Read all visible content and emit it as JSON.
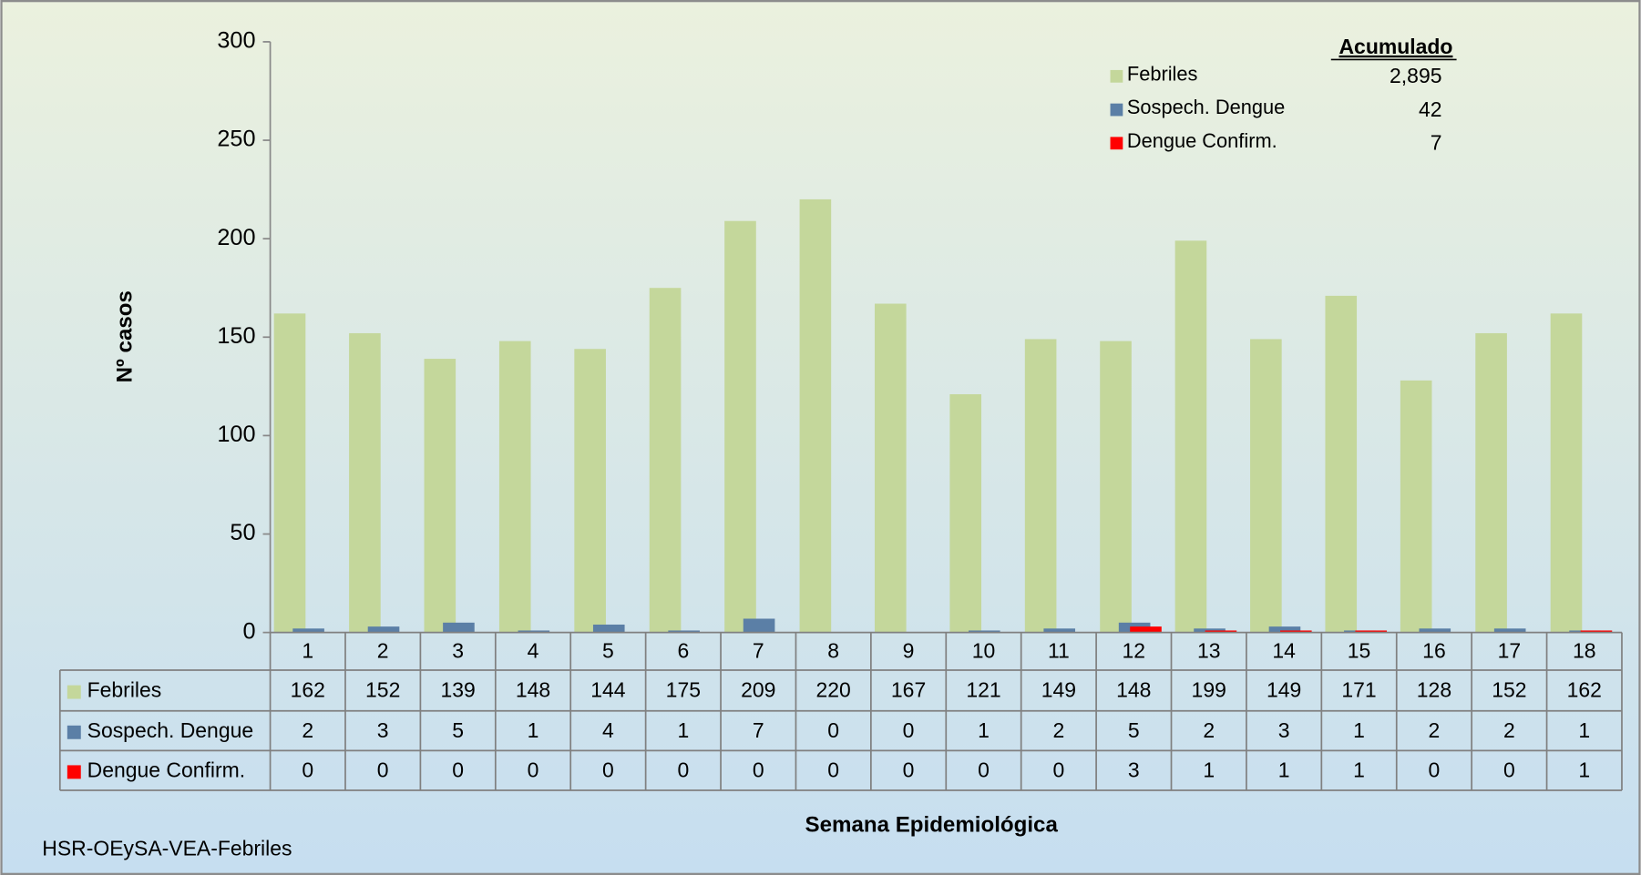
{
  "chart_data": {
    "type": "bar",
    "ylabel": "Nº casos",
    "xlabel": "Semana Epidemiológica",
    "footer": "HSR-OEySA-VEA-Febriles",
    "categories": [
      1,
      2,
      3,
      4,
      5,
      6,
      7,
      8,
      9,
      10,
      11,
      12,
      13,
      14,
      15,
      16,
      17,
      18
    ],
    "series": [
      {
        "name": "Febriles",
        "color": "#c4d79b",
        "values": [
          162,
          152,
          139,
          148,
          144,
          175,
          209,
          220,
          167,
          121,
          149,
          148,
          199,
          149,
          171,
          128,
          152,
          162
        ]
      },
      {
        "name": "Sospech. Dengue",
        "color": "#5b7fa6",
        "values": [
          2,
          3,
          5,
          1,
          4,
          1,
          7,
          0,
          0,
          1,
          2,
          5,
          2,
          3,
          1,
          2,
          2,
          1
        ]
      },
      {
        "name": "Dengue Confirm.",
        "color": "#ff0000",
        "values": [
          0,
          0,
          0,
          0,
          0,
          0,
          0,
          0,
          0,
          0,
          0,
          3,
          1,
          1,
          1,
          0,
          0,
          1
        ]
      }
    ],
    "accumulated": {
      "title": "Acumulado",
      "values": [
        2895,
        42,
        7
      ],
      "value_labels": [
        "2,895",
        "42",
        "7"
      ]
    },
    "ylim": [
      0,
      300
    ],
    "yticks": [
      0,
      50,
      100,
      150,
      200,
      250,
      300
    ]
  }
}
